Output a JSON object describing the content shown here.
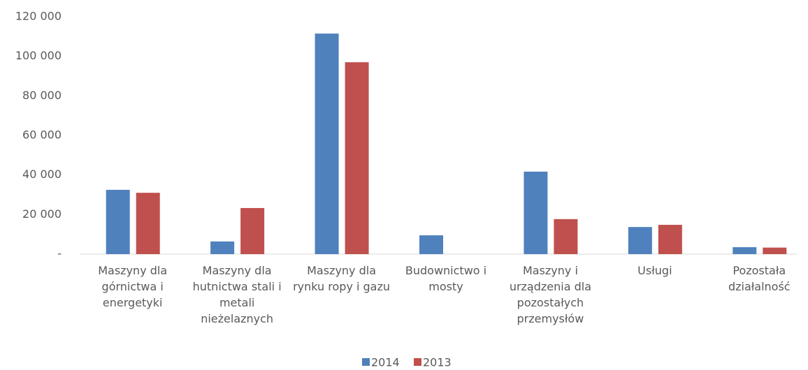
{
  "chart_data": {
    "type": "bar",
    "categories": [
      "Maszyny dla górnictwa i energetyki",
      "Maszyny dla hutnictwa stali i metali nieżelaznych",
      "Maszyny dla rynku ropy i gazu",
      "Budownictwo i mosty",
      "Maszyny i urządzenia dla pozostałych przemysłów",
      "Usługi",
      "Pozostała działalność"
    ],
    "series": [
      {
        "name": "2014",
        "color": "#4f81bd",
        "values": [
          32500,
          6400,
          111500,
          9500,
          41700,
          13700,
          3500
        ]
      },
      {
        "name": "2013",
        "color": "#c0504d",
        "values": [
          31000,
          23300,
          97000,
          0,
          17700,
          14800,
          3300
        ]
      }
    ],
    "ylim": [
      0,
      120000
    ],
    "yticks": [
      {
        "value": 0,
        "label": "-"
      },
      {
        "value": 20000,
        "label": "20 000"
      },
      {
        "value": 40000,
        "label": "40 000"
      },
      {
        "value": 60000,
        "label": "60 000"
      },
      {
        "value": 80000,
        "label": "80 000"
      },
      {
        "value": 100000,
        "label": "100 000"
      },
      {
        "value": 120000,
        "label": "120 000"
      }
    ],
    "grid": false,
    "legend": "bottom"
  }
}
